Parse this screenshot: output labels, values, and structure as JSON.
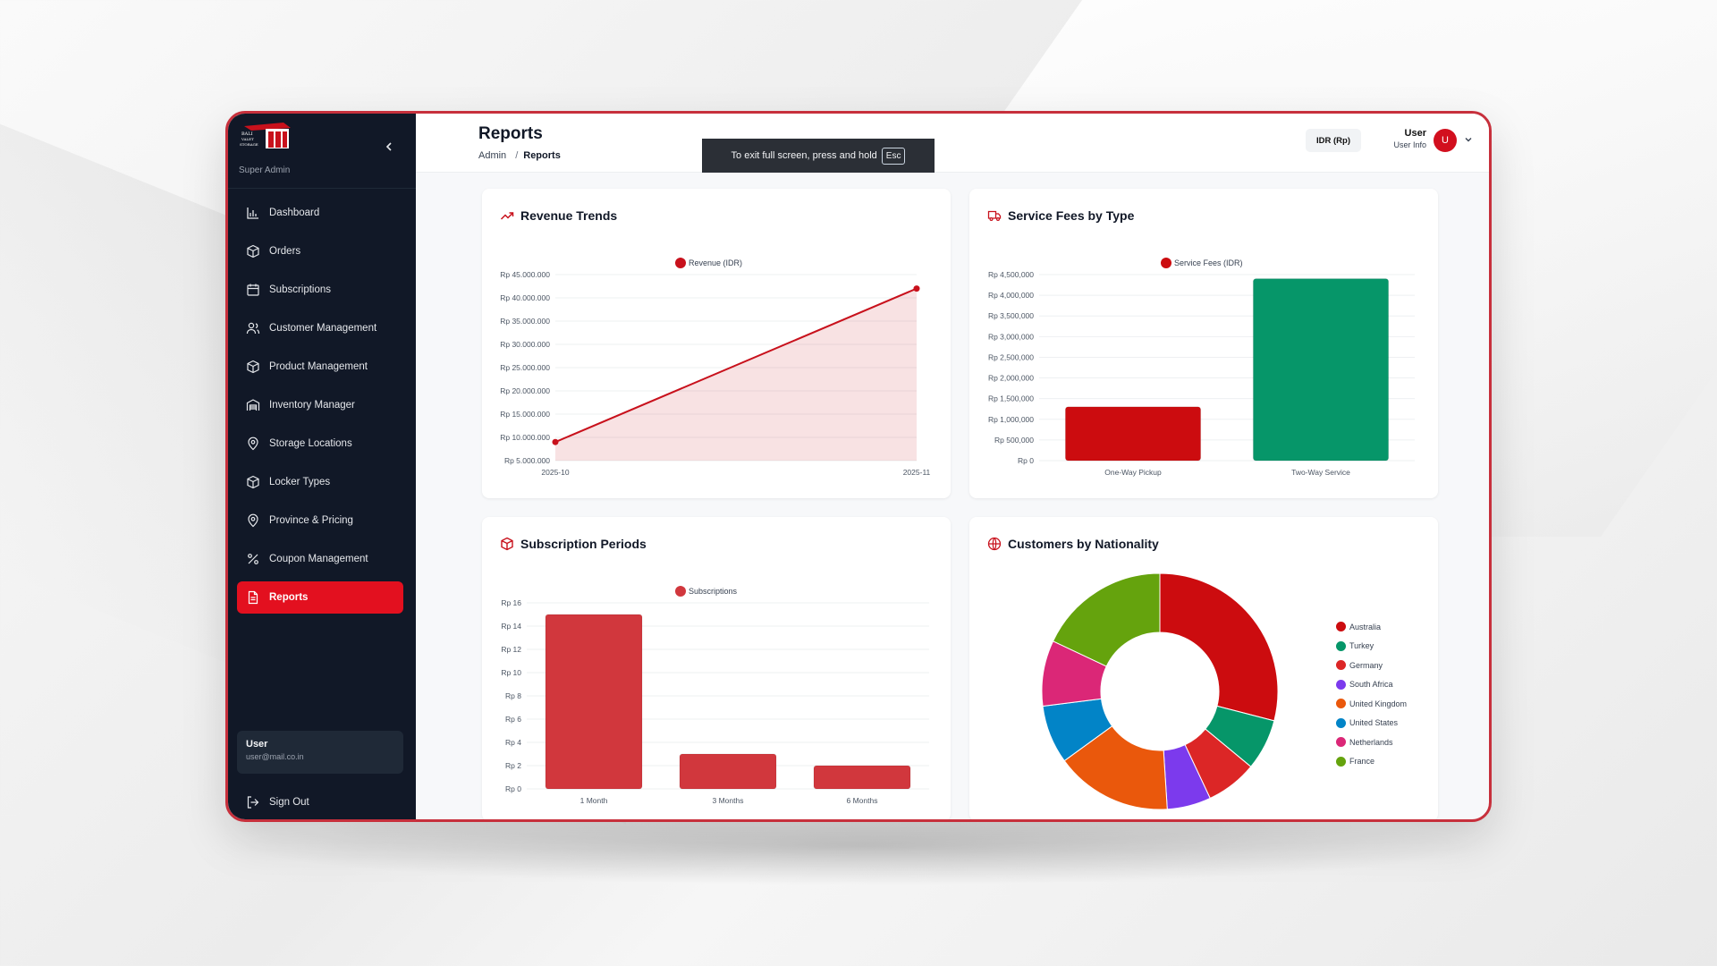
{
  "sidebar": {
    "role": "Super Admin",
    "logo_text": "BALI VALET STORAGE",
    "items": [
      {
        "label": "Dashboard",
        "icon": "bar-chart-icon"
      },
      {
        "label": "Orders",
        "icon": "box-icon"
      },
      {
        "label": "Subscriptions",
        "icon": "calendar-icon"
      },
      {
        "label": "Customer Management",
        "icon": "users-icon"
      },
      {
        "label": "Product Management",
        "icon": "box-icon"
      },
      {
        "label": "Inventory Manager",
        "icon": "warehouse-icon"
      },
      {
        "label": "Storage Locations",
        "icon": "map-pin-icon"
      },
      {
        "label": "Locker Types",
        "icon": "box-icon"
      },
      {
        "label": "Province & Pricing",
        "icon": "map-pin-icon"
      },
      {
        "label": "Coupon Management",
        "icon": "percent-icon"
      },
      {
        "label": "Reports",
        "icon": "file-icon",
        "active": true
      }
    ],
    "user": {
      "name": "User",
      "email": "user@mail.co.in"
    },
    "signout": "Sign Out"
  },
  "header": {
    "title": "Reports",
    "breadcrumb": [
      "Admin",
      "Reports"
    ],
    "fullscreen_note": "To exit full screen, press and hold",
    "fullscreen_key": "Esc",
    "currency": "IDR (Rp)",
    "user_name": "User",
    "user_sub": "User Info",
    "avatar_letter": "U"
  },
  "colors": {
    "accent": "#e3101f",
    "sidebar": "#111827",
    "green": "#059669"
  },
  "cards": {
    "revenue": {
      "title": "Revenue Trends"
    },
    "fees": {
      "title": "Service Fees by Type"
    },
    "subs": {
      "title": "Subscription Periods"
    },
    "nationality": {
      "title": "Customers by Nationality"
    }
  },
  "chart_data": [
    {
      "type": "area",
      "title": "Revenue Trends",
      "legend": "Revenue (IDR)",
      "x": [
        "2025-10",
        "2025-11"
      ],
      "values": [
        9000000,
        42000000
      ],
      "yticks": [
        "Rp 5.000.000",
        "Rp 10.000.000",
        "Rp 15.000.000",
        "Rp 20.000.000",
        "Rp 25.000.000",
        "Rp 30.000.000",
        "Rp 35.000.000",
        "Rp 40.000.000",
        "Rp 45.000.000"
      ],
      "ylim": [
        5000000,
        45000000
      ],
      "color": "#c8111c"
    },
    {
      "type": "bar",
      "title": "Service Fees by Type",
      "legend": "Service Fees (IDR)",
      "categories": [
        "One-Way Pickup",
        "Two-Way Service"
      ],
      "values": [
        1300000,
        4400000
      ],
      "colors": [
        "#cc0c0f",
        "#069669"
      ],
      "yticks": [
        "Rp 0",
        "Rp 500,000",
        "Rp 1,000,000",
        "Rp 1,500,000",
        "Rp 2,000,000",
        "Rp 2,500,000",
        "Rp 3,000,000",
        "Rp 3,500,000",
        "Rp 4,000,000",
        "Rp 4,500,000"
      ],
      "ylim": [
        0,
        4500000
      ]
    },
    {
      "type": "bar",
      "title": "Subscription Periods",
      "legend": "Subscriptions",
      "categories": [
        "1 Month",
        "3 Months",
        "6 Months"
      ],
      "values": [
        15,
        3,
        2
      ],
      "colors": [
        "#d1373d",
        "#d1373d",
        "#d1373d"
      ],
      "yticks": [
        "Rp 0",
        "Rp 2",
        "Rp 4",
        "Rp 6",
        "Rp 8",
        "Rp 10",
        "Rp 12",
        "Rp 14",
        "Rp 16"
      ],
      "ylim": [
        0,
        16
      ]
    },
    {
      "type": "pie",
      "title": "Customers by Nationality",
      "labels": [
        "Australia",
        "Turkey",
        "Germany",
        "South Africa",
        "United Kingdom",
        "United States",
        "Netherlands",
        "France"
      ],
      "values": [
        29,
        7,
        7,
        6,
        16,
        8,
        9,
        18
      ],
      "colors": [
        "#cc0c0f",
        "#069669",
        "#dc2626",
        "#7c3aed",
        "#ea580c",
        "#0284c7",
        "#db2777",
        "#65a30d"
      ]
    }
  ]
}
